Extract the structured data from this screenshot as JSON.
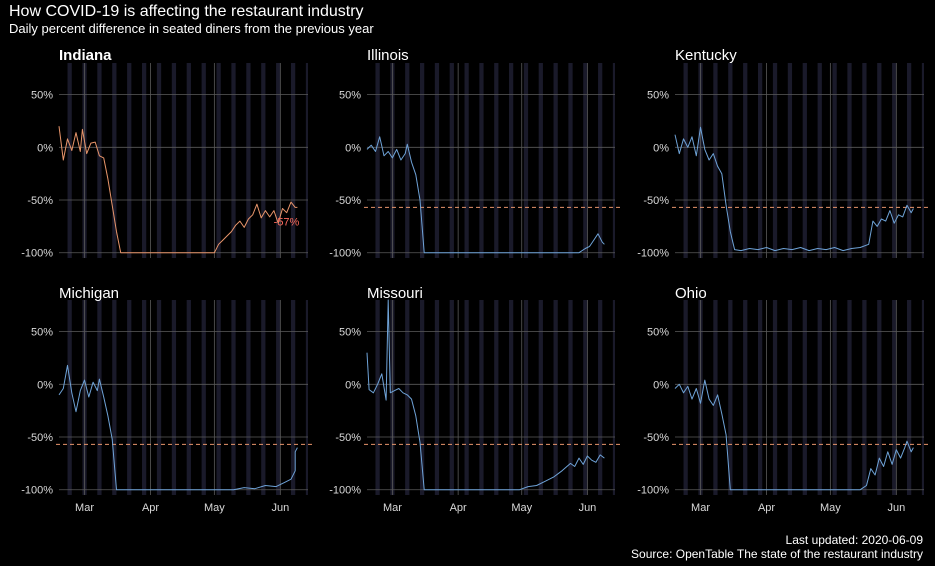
{
  "title": "How COVID-19 is affecting the restaurant industry",
  "subtitle": "Daily percent difference in seated diners from the previous year",
  "caption_updated": "Last updated: 2020-06-09",
  "caption_source": "Source: OpenTable The state of the restaurant industry",
  "colors": {
    "background": "#000000",
    "highlight": "#e8956b",
    "series": "#6fa3d8",
    "end_label": "#ff6b5e",
    "reference": "#e8956b",
    "grid": "#5a5a5a",
    "weekend_band": "#1a1a2a"
  },
  "chart_data": {
    "type": "line",
    "layout": "small-multiples",
    "x_type": "date",
    "xlim": [
      "2020-02-18",
      "2020-06-14"
    ],
    "x_ticks": [
      {
        "date": "2020-03-01",
        "label": "Mar"
      },
      {
        "date": "2020-04-01",
        "label": "Apr"
      },
      {
        "date": "2020-05-01",
        "label": "May"
      },
      {
        "date": "2020-06-01",
        "label": "Jun"
      }
    ],
    "ylim": [
      -105,
      80
    ],
    "y_ticks": [
      {
        "value": 50,
        "label": "50%"
      },
      {
        "value": 0,
        "label": "0%"
      },
      {
        "value": -50,
        "label": "-50%"
      },
      {
        "value": -100,
        "label": "-100%"
      }
    ],
    "reference_line": -57,
    "weekend_bands": true,
    "highlight": "Indiana",
    "end_label": "-57%",
    "panels": [
      {
        "name": "Indiana",
        "points": [
          [
            "2020-02-18",
            20
          ],
          [
            "2020-02-20",
            -12
          ],
          [
            "2020-02-22",
            8
          ],
          [
            "2020-02-24",
            -3
          ],
          [
            "2020-02-26",
            14
          ],
          [
            "2020-02-28",
            -4
          ],
          [
            "2020-02-29",
            17
          ],
          [
            "2020-03-02",
            -6
          ],
          [
            "2020-03-04",
            4
          ],
          [
            "2020-03-06",
            5
          ],
          [
            "2020-03-08",
            -8
          ],
          [
            "2020-03-10",
            -10
          ],
          [
            "2020-03-12",
            -30
          ],
          [
            "2020-03-14",
            -55
          ],
          [
            "2020-03-16",
            -80
          ],
          [
            "2020-03-18",
            -100
          ],
          [
            "2020-05-01",
            -100
          ],
          [
            "2020-05-03",
            -92
          ],
          [
            "2020-05-05",
            -88
          ],
          [
            "2020-05-07",
            -84
          ],
          [
            "2020-05-09",
            -80
          ],
          [
            "2020-05-11",
            -74
          ],
          [
            "2020-05-13",
            -70
          ],
          [
            "2020-05-15",
            -76
          ],
          [
            "2020-05-17",
            -68
          ],
          [
            "2020-05-19",
            -64
          ],
          [
            "2020-05-21",
            -54
          ],
          [
            "2020-05-23",
            -67
          ],
          [
            "2020-05-25",
            -60
          ],
          [
            "2020-05-27",
            -66
          ],
          [
            "2020-05-29",
            -60
          ],
          [
            "2020-05-31",
            -72
          ],
          [
            "2020-06-02",
            -58
          ],
          [
            "2020-06-04",
            -62
          ],
          [
            "2020-06-06",
            -52
          ],
          [
            "2020-06-08",
            -57
          ],
          [
            "2020-06-09",
            -57
          ]
        ]
      },
      {
        "name": "Illinois",
        "points": [
          [
            "2020-02-18",
            -2
          ],
          [
            "2020-02-20",
            2
          ],
          [
            "2020-02-22",
            -4
          ],
          [
            "2020-02-24",
            10
          ],
          [
            "2020-02-26",
            -8
          ],
          [
            "2020-02-28",
            -4
          ],
          [
            "2020-03-01",
            -10
          ],
          [
            "2020-03-03",
            -2
          ],
          [
            "2020-03-05",
            -12
          ],
          [
            "2020-03-07",
            -6
          ],
          [
            "2020-03-08",
            3
          ],
          [
            "2020-03-10",
            -14
          ],
          [
            "2020-03-12",
            -26
          ],
          [
            "2020-03-14",
            -50
          ],
          [
            "2020-03-16",
            -100
          ],
          [
            "2020-05-28",
            -100
          ],
          [
            "2020-05-31",
            -96
          ],
          [
            "2020-06-02",
            -94
          ],
          [
            "2020-06-04",
            -88
          ],
          [
            "2020-06-06",
            -82
          ],
          [
            "2020-06-08",
            -90
          ],
          [
            "2020-06-09",
            -92
          ]
        ]
      },
      {
        "name": "Kentucky",
        "points": [
          [
            "2020-02-18",
            12
          ],
          [
            "2020-02-20",
            -6
          ],
          [
            "2020-02-22",
            8
          ],
          [
            "2020-02-24",
            0
          ],
          [
            "2020-02-26",
            10
          ],
          [
            "2020-02-28",
            -8
          ],
          [
            "2020-03-01",
            19
          ],
          [
            "2020-03-03",
            -2
          ],
          [
            "2020-03-05",
            -12
          ],
          [
            "2020-03-07",
            -6
          ],
          [
            "2020-03-09",
            -18
          ],
          [
            "2020-03-11",
            -25
          ],
          [
            "2020-03-13",
            -55
          ],
          [
            "2020-03-15",
            -80
          ],
          [
            "2020-03-17",
            -97
          ],
          [
            "2020-03-20",
            -98
          ],
          [
            "2020-03-24",
            -96
          ],
          [
            "2020-03-28",
            -97
          ],
          [
            "2020-04-01",
            -95
          ],
          [
            "2020-04-05",
            -98
          ],
          [
            "2020-04-09",
            -96
          ],
          [
            "2020-04-13",
            -97
          ],
          [
            "2020-04-17",
            -95
          ],
          [
            "2020-04-21",
            -98
          ],
          [
            "2020-04-25",
            -96
          ],
          [
            "2020-04-29",
            -97
          ],
          [
            "2020-05-03",
            -95
          ],
          [
            "2020-05-07",
            -98
          ],
          [
            "2020-05-11",
            -96
          ],
          [
            "2020-05-15",
            -95
          ],
          [
            "2020-05-19",
            -92
          ],
          [
            "2020-05-21",
            -70
          ],
          [
            "2020-05-23",
            -75
          ],
          [
            "2020-05-25",
            -68
          ],
          [
            "2020-05-27",
            -70
          ],
          [
            "2020-05-29",
            -60
          ],
          [
            "2020-05-31",
            -72
          ],
          [
            "2020-06-02",
            -64
          ],
          [
            "2020-06-04",
            -66
          ],
          [
            "2020-06-06",
            -55
          ],
          [
            "2020-06-08",
            -62
          ],
          [
            "2020-06-09",
            -58
          ]
        ]
      },
      {
        "name": "Michigan",
        "points": [
          [
            "2020-02-18",
            -10
          ],
          [
            "2020-02-20",
            -4
          ],
          [
            "2020-02-22",
            18
          ],
          [
            "2020-02-24",
            -8
          ],
          [
            "2020-02-26",
            -26
          ],
          [
            "2020-02-28",
            -6
          ],
          [
            "2020-03-01",
            4
          ],
          [
            "2020-03-03",
            -12
          ],
          [
            "2020-03-05",
            2
          ],
          [
            "2020-03-07",
            -6
          ],
          [
            "2020-03-08",
            5
          ],
          [
            "2020-03-10",
            -12
          ],
          [
            "2020-03-12",
            -30
          ],
          [
            "2020-03-14",
            -52
          ],
          [
            "2020-03-16",
            -100
          ],
          [
            "2020-05-10",
            -100
          ],
          [
            "2020-05-15",
            -98
          ],
          [
            "2020-05-20",
            -99
          ],
          [
            "2020-05-25",
            -96
          ],
          [
            "2020-05-30",
            -97
          ],
          [
            "2020-06-03",
            -93
          ],
          [
            "2020-06-06",
            -90
          ],
          [
            "2020-06-08",
            -82
          ],
          [
            "2020-06-08",
            -64
          ],
          [
            "2020-06-09",
            -60
          ]
        ]
      },
      {
        "name": "Missouri",
        "points": [
          [
            "2020-02-18",
            30
          ],
          [
            "2020-02-19",
            -5
          ],
          [
            "2020-02-21",
            -8
          ],
          [
            "2020-02-23",
            0
          ],
          [
            "2020-02-25",
            10
          ],
          [
            "2020-02-27",
            -15
          ],
          [
            "2020-02-28",
            80
          ],
          [
            "2020-02-29",
            -8
          ],
          [
            "2020-03-02",
            -6
          ],
          [
            "2020-03-04",
            -4
          ],
          [
            "2020-03-06",
            -8
          ],
          [
            "2020-03-08",
            -10
          ],
          [
            "2020-03-10",
            -14
          ],
          [
            "2020-03-12",
            -30
          ],
          [
            "2020-03-14",
            -55
          ],
          [
            "2020-03-16",
            -100
          ],
          [
            "2020-04-30",
            -100
          ],
          [
            "2020-05-04",
            -97
          ],
          [
            "2020-05-08",
            -96
          ],
          [
            "2020-05-12",
            -92
          ],
          [
            "2020-05-16",
            -88
          ],
          [
            "2020-05-20",
            -82
          ],
          [
            "2020-05-24",
            -75
          ],
          [
            "2020-05-26",
            -78
          ],
          [
            "2020-05-28",
            -70
          ],
          [
            "2020-05-30",
            -76
          ],
          [
            "2020-06-01",
            -68
          ],
          [
            "2020-06-03",
            -72
          ],
          [
            "2020-06-05",
            -74
          ],
          [
            "2020-06-07",
            -67
          ],
          [
            "2020-06-09",
            -70
          ]
        ]
      },
      {
        "name": "Ohio",
        "points": [
          [
            "2020-02-18",
            -4
          ],
          [
            "2020-02-20",
            0
          ],
          [
            "2020-02-22",
            -8
          ],
          [
            "2020-02-24",
            -2
          ],
          [
            "2020-02-26",
            -14
          ],
          [
            "2020-02-28",
            -4
          ],
          [
            "2020-03-01",
            -18
          ],
          [
            "2020-03-03",
            4
          ],
          [
            "2020-03-05",
            -14
          ],
          [
            "2020-03-07",
            -20
          ],
          [
            "2020-03-09",
            -10
          ],
          [
            "2020-03-11",
            -28
          ],
          [
            "2020-03-13",
            -48
          ],
          [
            "2020-03-15",
            -100
          ],
          [
            "2020-05-15",
            -100
          ],
          [
            "2020-05-18",
            -96
          ],
          [
            "2020-05-20",
            -80
          ],
          [
            "2020-05-22",
            -86
          ],
          [
            "2020-05-24",
            -70
          ],
          [
            "2020-05-26",
            -78
          ],
          [
            "2020-05-28",
            -64
          ],
          [
            "2020-05-30",
            -76
          ],
          [
            "2020-06-01",
            -62
          ],
          [
            "2020-06-03",
            -70
          ],
          [
            "2020-06-05",
            -60
          ],
          [
            "2020-06-06",
            -54
          ],
          [
            "2020-06-08",
            -64
          ],
          [
            "2020-06-09",
            -60
          ]
        ]
      }
    ]
  }
}
